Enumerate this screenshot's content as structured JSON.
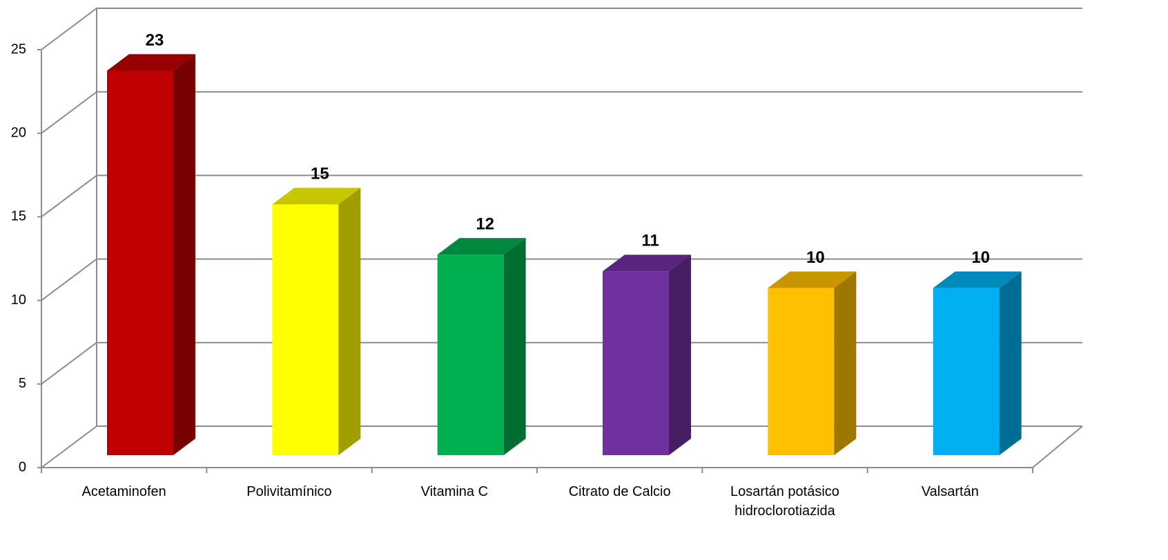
{
  "chart_data": {
    "type": "bar3d",
    "categories": [
      "Acetaminofen",
      "Polivitamínico",
      "Vitamina C",
      "Citrato de Calcio",
      "Losartán potásico hidroclorotiazida",
      "Valsartán"
    ],
    "values": [
      23,
      15,
      12,
      11,
      10,
      10
    ],
    "colors": [
      "#c00000",
      "#ffff00",
      "#00b050",
      "#7030a0",
      "#ffc000",
      "#00b0f0"
    ],
    "ylim": [
      0,
      25
    ],
    "yticks": [
      0,
      5,
      10,
      15,
      20,
      25
    ],
    "grid": true
  }
}
